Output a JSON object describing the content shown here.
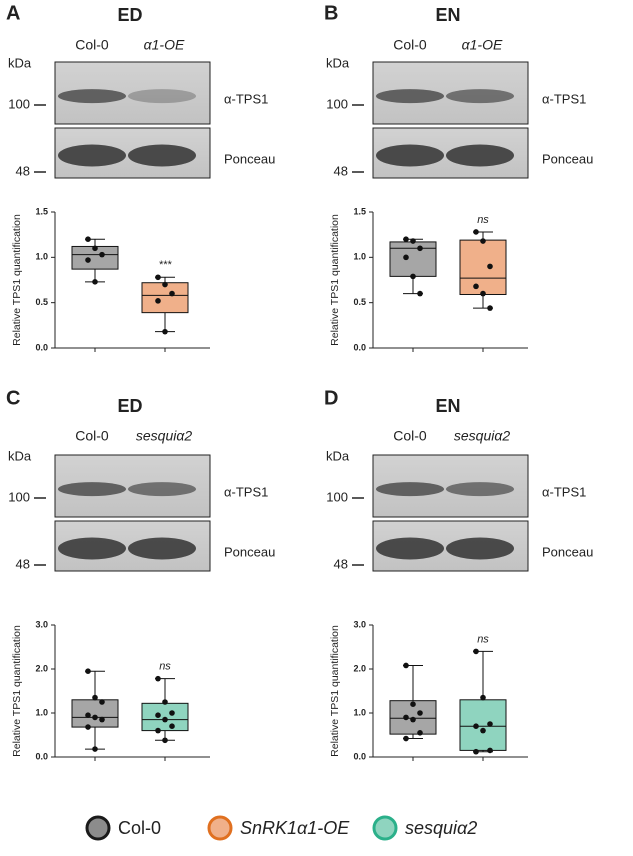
{
  "chart_data": [
    {
      "type": "box",
      "panel": "A",
      "title": "ED",
      "lanes": [
        "Col-0",
        "α1-OE"
      ],
      "kda_label": "kDa",
      "markers": [
        100,
        48
      ],
      "blots": [
        "α-TPS1",
        "Ponceau"
      ],
      "ylabel": "Relative TPS1 quantification",
      "ylim": [
        0,
        1.5
      ],
      "yticks": [
        {
          "value": 0,
          "label": "0.0"
        },
        0.5,
        {
          "value": 1,
          "label": "1.0"
        },
        1.5
      ],
      "series": [
        {
          "name": "Col-0",
          "color": "#a6a6a6",
          "min": 0.73,
          "q1": 0.87,
          "median": 1.03,
          "q3": 1.12,
          "max": 1.2,
          "points": [
            1.2,
            1.1,
            1.03,
            0.97,
            0.73
          ]
        },
        {
          "name": "α1-OE",
          "color": "#f0b08a",
          "min": 0.18,
          "q1": 0.39,
          "median": 0.58,
          "q3": 0.72,
          "max": 0.78,
          "points": [
            0.78,
            0.7,
            0.6,
            0.52,
            0.18
          ],
          "annotation": "***"
        }
      ]
    },
    {
      "type": "box",
      "panel": "B",
      "title": "EN",
      "lanes": [
        "Col-0",
        "α1-OE"
      ],
      "kda_label": "kDa",
      "markers": [
        100,
        48
      ],
      "blots": [
        "α-TPS1",
        "Ponceau"
      ],
      "ylabel": "Relative TPS1 quantification",
      "ylim": [
        0,
        1.5
      ],
      "yticks": [
        {
          "value": 0,
          "label": "0.0"
        },
        0.5,
        {
          "value": 1,
          "label": "1.0"
        },
        1.5
      ],
      "series": [
        {
          "name": "Col-0",
          "color": "#a6a6a6",
          "min": 0.6,
          "q1": 0.79,
          "median": 1.1,
          "q3": 1.17,
          "max": 1.2,
          "points": [
            1.2,
            1.18,
            1.1,
            1.0,
            0.79,
            0.6
          ]
        },
        {
          "name": "α1-OE",
          "color": "#f0b08a",
          "min": 0.44,
          "q1": 0.59,
          "median": 0.77,
          "q3": 1.19,
          "max": 1.28,
          "points": [
            1.28,
            1.18,
            0.9,
            0.68,
            0.6,
            0.44
          ],
          "annotation": "ns"
        }
      ]
    },
    {
      "type": "box",
      "panel": "C",
      "title": "ED",
      "lanes": [
        "Col-0",
        "sesquiα2"
      ],
      "kda_label": "kDa",
      "markers": [
        100,
        48
      ],
      "blots": [
        "α-TPS1",
        "Ponceau"
      ],
      "ylabel": "Relative TPS1 quantification",
      "ylim": [
        0,
        3
      ],
      "yticks": [
        {
          "value": 0,
          "label": "0.0"
        },
        {
          "value": 1,
          "label": "1.0"
        },
        {
          "value": 2,
          "label": "2.0"
        },
        {
          "value": 3,
          "label": "3.0"
        }
      ],
      "series": [
        {
          "name": "Col-0",
          "color": "#a6a6a6",
          "min": 0.18,
          "q1": 0.68,
          "median": 0.9,
          "q3": 1.3,
          "max": 1.95,
          "points": [
            1.95,
            1.35,
            1.25,
            0.95,
            0.9,
            0.85,
            0.68,
            0.18
          ]
        },
        {
          "name": "sesquiα2",
          "color": "#8fd4bf",
          "min": 0.38,
          "q1": 0.6,
          "median": 0.85,
          "q3": 1.22,
          "max": 1.78,
          "points": [
            1.78,
            1.25,
            1.0,
            0.95,
            0.85,
            0.7,
            0.6,
            0.38
          ],
          "annotation": "ns"
        }
      ]
    },
    {
      "type": "box",
      "panel": "D",
      "title": "EN",
      "lanes": [
        "Col-0",
        "sesquiα2"
      ],
      "kda_label": "kDa",
      "markers": [
        100,
        48
      ],
      "blots": [
        "α-TPS1",
        "Ponceau"
      ],
      "ylabel": "Relative TPS1 quantification",
      "ylim": [
        0,
        3
      ],
      "yticks": [
        {
          "value": 0,
          "label": "0.0"
        },
        {
          "value": 1,
          "label": "1.0"
        },
        {
          "value": 2,
          "label": "2.0"
        },
        {
          "value": 3,
          "label": "3.0"
        }
      ],
      "series": [
        {
          "name": "Col-0",
          "color": "#a6a6a6",
          "min": 0.42,
          "q1": 0.52,
          "median": 0.88,
          "q3": 1.28,
          "max": 2.08,
          "points": [
            2.08,
            1.2,
            1.0,
            0.9,
            0.85,
            0.55,
            0.42
          ]
        },
        {
          "name": "sesquiα2",
          "color": "#8fd4bf",
          "min": 0.12,
          "q1": 0.15,
          "median": 0.7,
          "q3": 1.3,
          "max": 2.4,
          "points": [
            2.4,
            1.35,
            0.75,
            0.7,
            0.6,
            0.15,
            0.12
          ],
          "annotation": "ns"
        }
      ]
    }
  ],
  "legend": [
    {
      "name": "Col-0",
      "color": "#8c8c8c",
      "edge": "#1a1a1a"
    },
    {
      "name": "SnRK1α1-OE",
      "color": "#f0b08a",
      "edge": "#e07020"
    },
    {
      "name": "sesquiα2",
      "color": "#8fd4bf",
      "edge": "#2bb08a"
    }
  ]
}
